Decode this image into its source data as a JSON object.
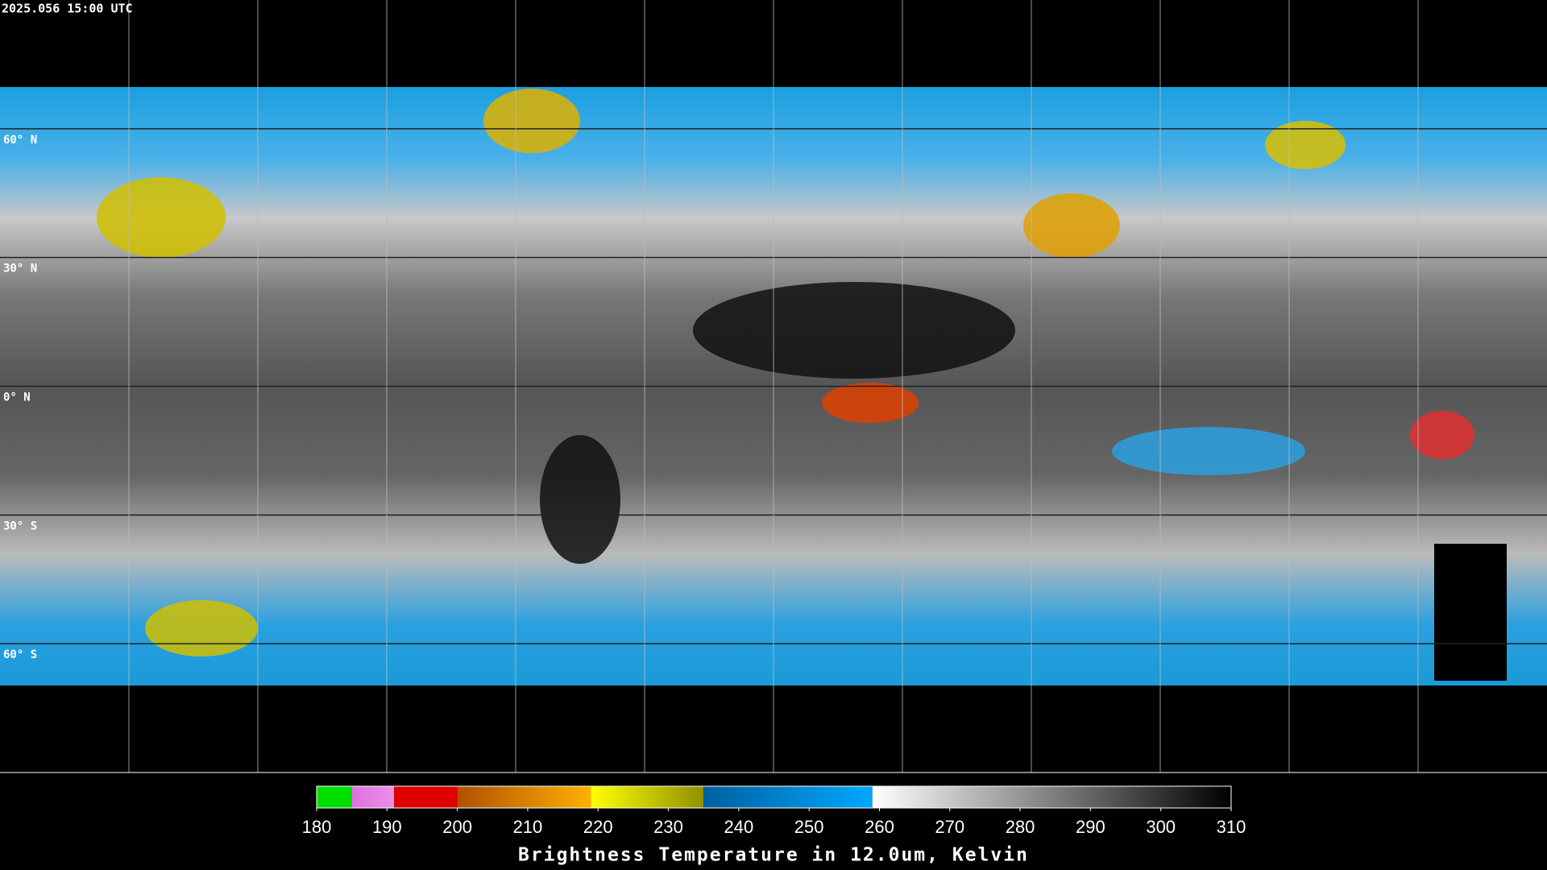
{
  "header": {
    "timestamp": "2025.056 15:00 UTC"
  },
  "map": {
    "ylim": [
      90,
      -90
    ],
    "yticks": [
      {
        "value": 60,
        "label": "60° N"
      },
      {
        "value": 30,
        "label": "30° N"
      },
      {
        "value": 0,
        "label": "0° N"
      },
      {
        "value": -30,
        "label": "30° S"
      },
      {
        "value": -60,
        "label": "60° S"
      }
    ]
  },
  "colorbar": {
    "xlim": [
      180,
      310
    ],
    "xticks": [
      180,
      190,
      200,
      210,
      220,
      230,
      240,
      250,
      260,
      270,
      280,
      290,
      300,
      310
    ],
    "label": "Brightness Temperature in 12.0um, Kelvin",
    "segments": [
      {
        "from": 180,
        "to": 185,
        "color_from": "#00e000",
        "color_to": "#00e000"
      },
      {
        "from": 185,
        "to": 191,
        "color_from": "#e070e0",
        "color_to": "#e890e8"
      },
      {
        "from": 191,
        "to": 200,
        "color_from": "#e00000",
        "color_to": "#e00000"
      },
      {
        "from": 200,
        "to": 219,
        "color_from": "#b05000",
        "color_to": "#ffb000"
      },
      {
        "from": 219,
        "to": 235,
        "color_from": "#ffff00",
        "color_to": "#909000"
      },
      {
        "from": 235,
        "to": 259,
        "color_from": "#0060a0",
        "color_to": "#00a8ff"
      },
      {
        "from": 259,
        "to": 310,
        "color_from": "#ffffff",
        "color_to": "#000000"
      }
    ]
  }
}
